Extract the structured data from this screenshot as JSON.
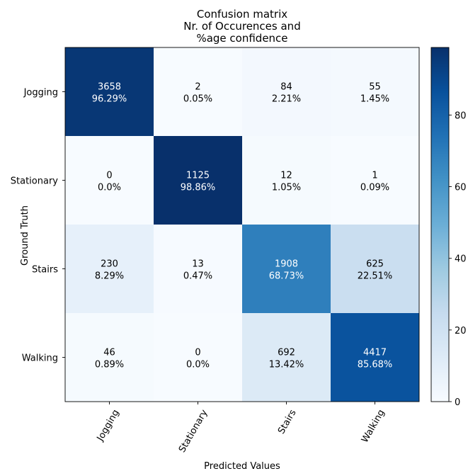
{
  "chart_data": {
    "type": "heatmap",
    "title": [
      "Confusion matrix",
      "Nr. of Occurences and",
      "%age confidence"
    ],
    "xlabel": "Predicted Values",
    "ylabel": "Ground Truth",
    "x_categories": [
      "Jogging",
      "Stationary",
      "Stairs",
      "Walking"
    ],
    "y_categories": [
      "Jogging",
      "Stationary",
      "Stairs",
      "Walking"
    ],
    "counts": [
      [
        3658,
        2,
        84,
        55
      ],
      [
        0,
        1125,
        12,
        1
      ],
      [
        230,
        13,
        1908,
        625
      ],
      [
        46,
        0,
        692,
        4417
      ]
    ],
    "percent_labels": [
      [
        "96.29%",
        "0.05%",
        "2.21%",
        "1.45%"
      ],
      [
        "0.0%",
        "98.86%",
        "1.05%",
        "0.09%"
      ],
      [
        "8.29%",
        "0.47%",
        "68.73%",
        "22.51%"
      ],
      [
        "0.89%",
        "0.0%",
        "13.42%",
        "85.68%"
      ]
    ],
    "percent_values": [
      [
        96.29,
        0.05,
        2.21,
        1.45
      ],
      [
        0.0,
        98.86,
        1.05,
        0.09
      ],
      [
        8.29,
        0.47,
        68.73,
        22.51
      ],
      [
        0.89,
        0.0,
        13.42,
        85.68
      ]
    ],
    "colorbar": {
      "min": 0,
      "max": 98.86,
      "ticks": [
        "0",
        "20",
        "40",
        "60",
        "80"
      ],
      "tick_values": [
        0,
        20,
        40,
        60,
        80
      ]
    },
    "colormap": "Blues",
    "grid": false
  }
}
